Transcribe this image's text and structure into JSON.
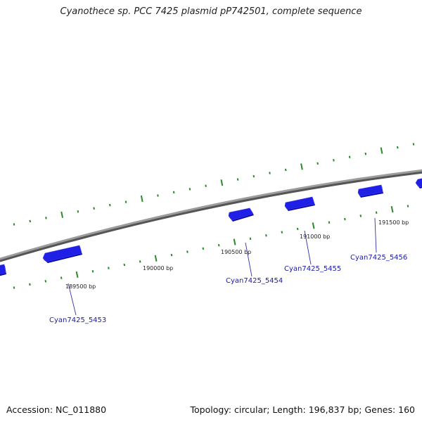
{
  "title": "Cyanothece sp. PCC 7425 plasmid pP742501, complete sequence",
  "footer": {
    "accession": "Accession: NC_011880",
    "summary": "Topology: circular; Length: 196,837 bp; Genes: 160"
  },
  "colors": {
    "backbone": "#7f7f7f",
    "gene": "#1f1fe6",
    "gene_dark": "#0a0aa0",
    "tick": "#2a8a2a",
    "label_line": "#3333aa"
  },
  "ticks": [
    {
      "label": "189500 bp"
    },
    {
      "label": "190000 bp"
    },
    {
      "label": "190500 bp"
    },
    {
      "label": "191000 bp"
    },
    {
      "label": "191500 bp"
    }
  ],
  "genes": [
    {
      "label": "Cyan7425_5453"
    },
    {
      "label": "Cyan7425_5454"
    },
    {
      "label": "Cyan7425_5455"
    },
    {
      "label": "Cyan7425_5456"
    }
  ]
}
